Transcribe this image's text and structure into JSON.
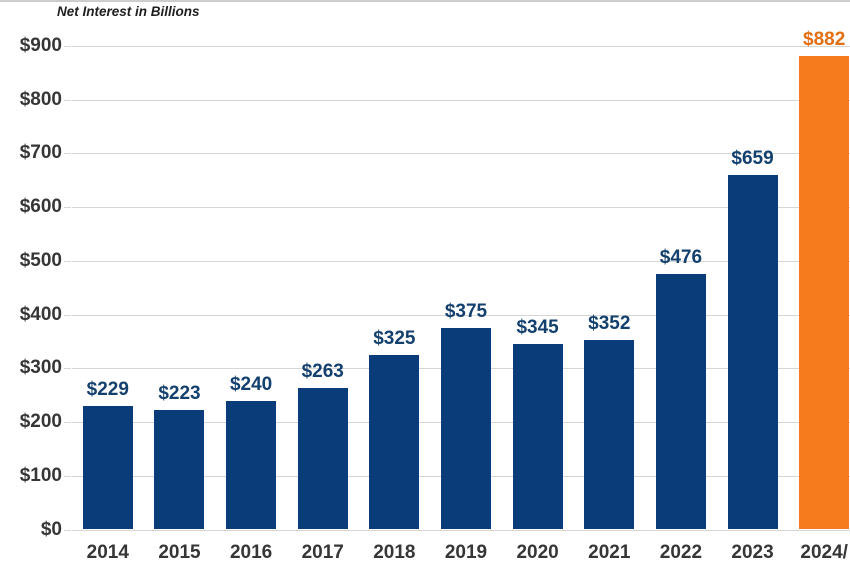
{
  "chart_data": {
    "type": "bar",
    "title": "Net Interest in Billions",
    "categories": [
      "2014",
      "2015",
      "2016",
      "2017",
      "2018",
      "2019",
      "2020",
      "2021",
      "2022",
      "2023",
      "2024"
    ],
    "values": [
      229,
      223,
      240,
      263,
      325,
      375,
      345,
      352,
      476,
      659,
      882
    ],
    "value_labels": [
      "$229",
      "$223",
      "$240",
      "$263",
      "$325",
      "$375",
      "$345",
      "$352",
      "$476",
      "$659",
      "$882"
    ],
    "x_tick_labels": [
      "2014",
      "2015",
      "2016",
      "2017",
      "2018",
      "2019",
      "2020",
      "2021",
      "2022",
      "2023",
      "2024/"
    ],
    "y_tick_labels": [
      "$0",
      "$100",
      "$200",
      "$300",
      "$400",
      "$500",
      "$600",
      "$700",
      "$800",
      "$900"
    ],
    "ylim": [
      0,
      900
    ],
    "ytick_step": 100,
    "grid": true,
    "legend": null,
    "highlight_index": 10,
    "colors": {
      "bar": "#0b3c7a",
      "highlight_bar": "#f57b1d",
      "value_label": "#14406e",
      "highlight_value_label": "#e26f12",
      "axis_text": "#363636",
      "grid": "#d6d6d6",
      "title_text": "#1f1f1f"
    }
  }
}
